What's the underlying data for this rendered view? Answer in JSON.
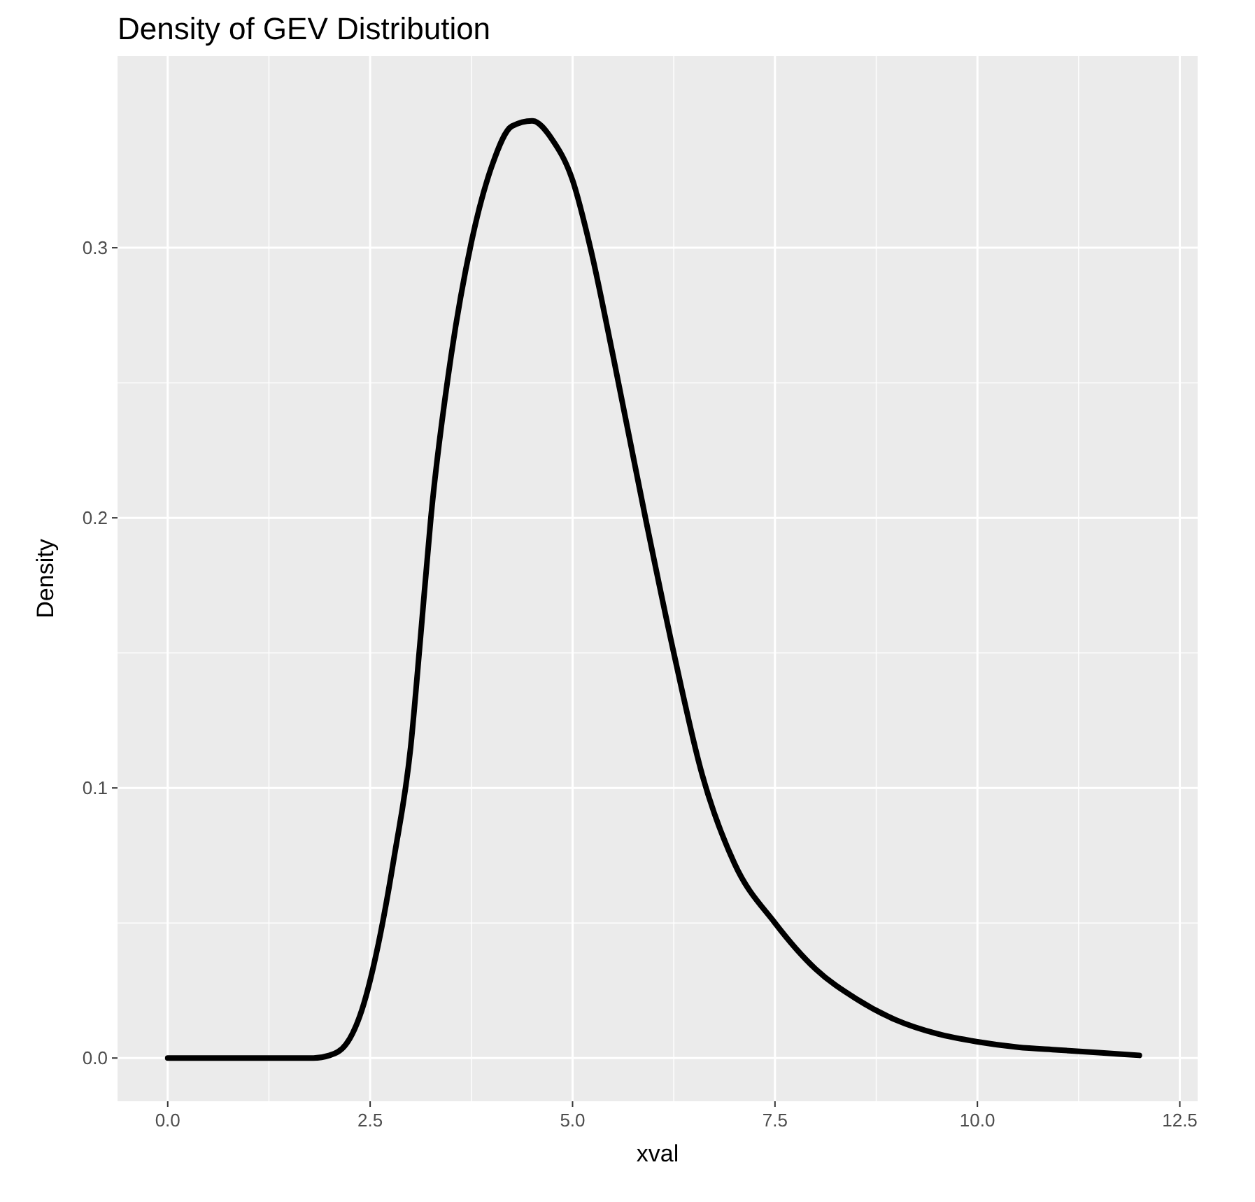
{
  "chart_data": {
    "type": "line",
    "title": "Density of GEV Distribution",
    "xlabel": "xval",
    "ylabel": "Density",
    "x": [
      0,
      1,
      1.8,
      2,
      2.2,
      2.4,
      2.6,
      2.8,
      3,
      3.12,
      3.25,
      3.5,
      3.75,
      4,
      4.25,
      4.5,
      4.75,
      5,
      5.22,
      5.5,
      5.9,
      6.25,
      6.6,
      7,
      7.5,
      8,
      8.5,
      9,
      9.5,
      10,
      10.5,
      11,
      11.5,
      12
    ],
    "series": [
      {
        "color": "#000000",
        "values": [
          0,
          0,
          0,
          0.001,
          0.005,
          0.018,
          0.042,
          0.075,
          0.115,
          0.155,
          0.2,
          0.26,
          0.302,
          0.33,
          0.345,
          0.347,
          0.34,
          0.325,
          0.3,
          0.26,
          0.2,
          0.15,
          0.105,
          0.072,
          0.05,
          0.033,
          0.022,
          0.014,
          0.009,
          0.006,
          0.004,
          0.003,
          0.002,
          0.001
        ]
      }
    ],
    "xlim": [
      -0.62,
      12.72
    ],
    "ylim": [
      -0.016,
      0.371
    ],
    "xticks": [
      {
        "value": 0,
        "label": "0.0"
      },
      {
        "value": 2.5,
        "label": "2.5"
      },
      {
        "value": 5,
        "label": "5.0"
      },
      {
        "value": 7.5,
        "label": "7.5"
      },
      {
        "value": 10,
        "label": "10.0"
      },
      {
        "value": 12.5,
        "label": "12.5"
      }
    ],
    "yticks": [
      {
        "value": 0,
        "label": "0.0"
      },
      {
        "value": 0.1,
        "label": "0.1"
      },
      {
        "value": 0.2,
        "label": "0.2"
      },
      {
        "value": 0.3,
        "label": "0.3"
      }
    ],
    "grid": true,
    "marker": "none",
    "line_style": "solid"
  }
}
